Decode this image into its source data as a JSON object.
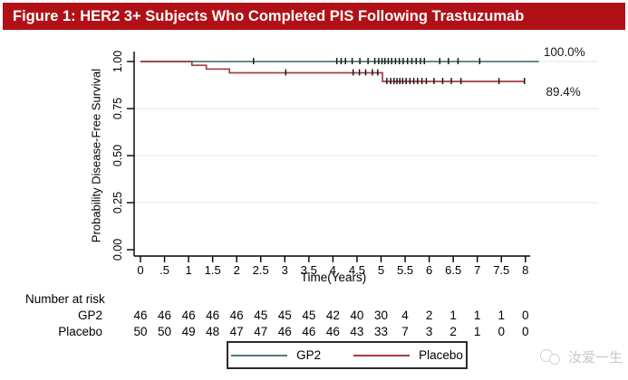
{
  "title_bar": {
    "text": "Figure 1: HER2 3+ Subjects Who Completed PIS Following Trastuzumab"
  },
  "colors": {
    "title_bg": "#B11116",
    "title_fg": "#FFFFFF",
    "gp2": "#4E7B7C",
    "placebo": "#A33C46",
    "censor": "#1A1A1A",
    "grid": "#E6E6E6",
    "axis": "#000000",
    "watermark": "#C9C9C9"
  },
  "chart_data": {
    "type": "line",
    "subtype": "kaplan-meier-step",
    "title": "",
    "xlabel": "Time(Years)",
    "ylabel": "Probability Disease-Free Survival",
    "xlim": [
      0,
      8.4
    ],
    "ylim": [
      0,
      1.0
    ],
    "grid": "horizontal-light",
    "grid_y": [
      1.0,
      0.75,
      0.5,
      0.25
    ],
    "x_ticks": {
      "values": [
        0,
        0.5,
        1,
        1.5,
        2,
        2.5,
        3,
        3.5,
        4,
        4.5,
        5,
        5.5,
        6,
        6.5,
        7,
        7.5,
        8
      ],
      "labels": [
        "0",
        ".5",
        "1",
        "1.5",
        "2",
        "2.5",
        "3",
        "3.5",
        "4",
        "4.5",
        "5",
        "5.5",
        "6",
        "6.5",
        "7",
        "7.5",
        "8"
      ]
    },
    "y_ticks": {
      "values": [
        1.0,
        0.75,
        0.5,
        0.25,
        0
      ],
      "labels": [
        "1.00",
        "0.75",
        "0.50",
        "0.25",
        "0.00"
      ]
    },
    "series": [
      {
        "name": "GP2",
        "color": "#4E7B7C",
        "end_label": "100.0%",
        "steps": [
          [
            0,
            1.0
          ],
          [
            8.28,
            1.0
          ]
        ],
        "censors": [
          [
            2.35,
            1.0
          ],
          [
            4.08,
            1.0
          ],
          [
            4.17,
            1.0
          ],
          [
            4.26,
            1.0
          ],
          [
            4.4,
            1.0
          ],
          [
            4.56,
            1.0
          ],
          [
            4.73,
            1.0
          ],
          [
            4.87,
            1.0
          ],
          [
            4.95,
            1.0
          ],
          [
            5.02,
            1.0
          ],
          [
            5.08,
            1.0
          ],
          [
            5.15,
            1.0
          ],
          [
            5.22,
            1.0
          ],
          [
            5.3,
            1.0
          ],
          [
            5.38,
            1.0
          ],
          [
            5.46,
            1.0
          ],
          [
            5.55,
            1.0
          ],
          [
            5.64,
            1.0
          ],
          [
            5.73,
            1.0
          ],
          [
            5.82,
            1.0
          ],
          [
            5.9,
            1.0
          ],
          [
            6.22,
            1.0
          ],
          [
            6.4,
            1.0
          ],
          [
            6.6,
            1.0
          ],
          [
            7.05,
            1.0
          ]
        ]
      },
      {
        "name": "Placebo",
        "color": "#A33C46",
        "end_label": "89.4%",
        "steps": [
          [
            0,
            1.0
          ],
          [
            1.07,
            1.0
          ],
          [
            1.07,
            0.98
          ],
          [
            1.37,
            0.98
          ],
          [
            1.37,
            0.96
          ],
          [
            1.85,
            0.96
          ],
          [
            1.85,
            0.94
          ],
          [
            5.03,
            0.94
          ],
          [
            5.03,
            0.894
          ],
          [
            7.98,
            0.894
          ]
        ],
        "censors": [
          [
            3.02,
            0.94
          ],
          [
            4.42,
            0.94
          ],
          [
            4.55,
            0.94
          ],
          [
            4.68,
            0.94
          ],
          [
            4.82,
            0.94
          ],
          [
            4.93,
            0.94
          ],
          [
            5.12,
            0.894
          ],
          [
            5.2,
            0.894
          ],
          [
            5.27,
            0.894
          ],
          [
            5.33,
            0.894
          ],
          [
            5.39,
            0.894
          ],
          [
            5.45,
            0.894
          ],
          [
            5.52,
            0.894
          ],
          [
            5.6,
            0.894
          ],
          [
            5.68,
            0.894
          ],
          [
            5.76,
            0.894
          ],
          [
            5.85,
            0.894
          ],
          [
            5.94,
            0.894
          ],
          [
            6.1,
            0.894
          ],
          [
            6.28,
            0.894
          ],
          [
            6.46,
            0.894
          ],
          [
            6.66,
            0.894
          ],
          [
            7.45,
            0.894
          ],
          [
            7.98,
            0.894
          ]
        ]
      }
    ],
    "legend": {
      "position": "bottom",
      "entries": [
        "GP2",
        "Placebo"
      ]
    },
    "risk_table": {
      "title": "Number at risk",
      "time_values": [
        0,
        0.5,
        1,
        1.5,
        2,
        2.5,
        3,
        3.5,
        4,
        4.5,
        5,
        5.5,
        6,
        6.5,
        7,
        7.5,
        8
      ],
      "rows": [
        {
          "label": "GP2",
          "values": [
            46,
            46,
            46,
            46,
            46,
            45,
            45,
            45,
            42,
            40,
            30,
            4,
            2,
            1,
            1,
            1,
            0
          ]
        },
        {
          "label": "Placebo",
          "values": [
            50,
            50,
            49,
            48,
            47,
            47,
            46,
            46,
            46,
            43,
            33,
            7,
            3,
            2,
            1,
            0,
            0
          ]
        }
      ]
    }
  },
  "watermark": {
    "text": "汝爱一生"
  }
}
